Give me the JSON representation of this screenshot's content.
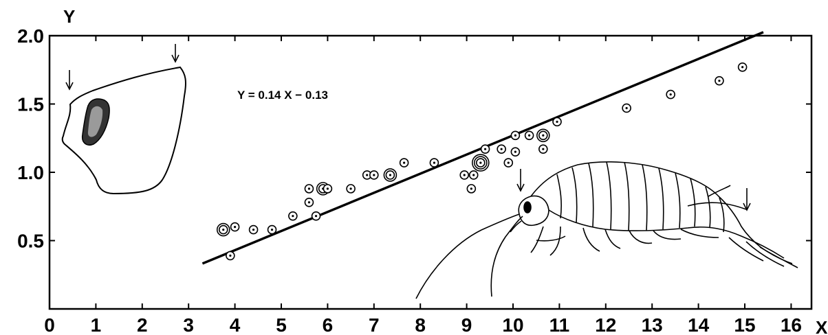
{
  "chart_data": {
    "type": "scatter",
    "title": "",
    "xlabel": "X",
    "ylabel": "Y",
    "xlim": [
      0,
      17
    ],
    "ylim": [
      0,
      2.0
    ],
    "x_ticks": [
      0,
      1,
      2,
      3,
      4,
      5,
      6,
      7,
      8,
      9,
      10,
      11,
      12,
      13,
      14,
      15,
      16
    ],
    "x_tick_labels": [
      "0",
      "1",
      "2",
      "3",
      "4",
      "5",
      "6",
      "7",
      "8",
      "9",
      "10",
      "11",
      "12",
      "13",
      "14",
      "15",
      "16"
    ],
    "y_ticks": [
      0.5,
      1.0,
      1.5,
      2.0
    ],
    "y_tick_labels": [
      "0.5",
      "1.0",
      "1.5",
      "2.0"
    ],
    "grid": false,
    "legend": "none",
    "regression": {
      "label": "Y = 0.14 X − 0.13",
      "slope": 0.14,
      "intercept": -0.13,
      "x_range": [
        3.3,
        15.4
      ]
    },
    "points": [
      {
        "x": 3.75,
        "y": 0.58,
        "n": 2
      },
      {
        "x": 4.0,
        "y": 0.6,
        "n": 1
      },
      {
        "x": 3.9,
        "y": 0.39,
        "n": 1
      },
      {
        "x": 4.4,
        "y": 0.58,
        "n": 1
      },
      {
        "x": 4.8,
        "y": 0.58,
        "n": 1
      },
      {
        "x": 5.25,
        "y": 0.68,
        "n": 1
      },
      {
        "x": 5.6,
        "y": 0.78,
        "n": 1
      },
      {
        "x": 5.6,
        "y": 0.88,
        "n": 1
      },
      {
        "x": 5.75,
        "y": 0.68,
        "n": 1
      },
      {
        "x": 5.9,
        "y": 0.88,
        "n": 2
      },
      {
        "x": 6.0,
        "y": 0.88,
        "n": 1
      },
      {
        "x": 6.5,
        "y": 0.88,
        "n": 1
      },
      {
        "x": 6.85,
        "y": 0.98,
        "n": 1
      },
      {
        "x": 7.0,
        "y": 0.98,
        "n": 1
      },
      {
        "x": 7.35,
        "y": 0.98,
        "n": 2
      },
      {
        "x": 7.65,
        "y": 1.07,
        "n": 1
      },
      {
        "x": 8.3,
        "y": 1.07,
        "n": 1
      },
      {
        "x": 8.95,
        "y": 0.98,
        "n": 1
      },
      {
        "x": 9.1,
        "y": 0.88,
        "n": 1
      },
      {
        "x": 9.15,
        "y": 0.98,
        "n": 1
      },
      {
        "x": 9.3,
        "y": 1.07,
        "n": 3
      },
      {
        "x": 9.4,
        "y": 1.17,
        "n": 1
      },
      {
        "x": 9.75,
        "y": 1.17,
        "n": 1
      },
      {
        "x": 9.9,
        "y": 1.07,
        "n": 1
      },
      {
        "x": 10.05,
        "y": 1.27,
        "n": 1
      },
      {
        "x": 10.05,
        "y": 1.15,
        "n": 1
      },
      {
        "x": 10.35,
        "y": 1.27,
        "n": 1
      },
      {
        "x": 10.65,
        "y": 1.27,
        "n": 2
      },
      {
        "x": 10.65,
        "y": 1.17,
        "n": 1
      },
      {
        "x": 10.95,
        "y": 1.37,
        "n": 1
      },
      {
        "x": 12.45,
        "y": 1.47,
        "n": 1
      },
      {
        "x": 13.4,
        "y": 1.57,
        "n": 1
      },
      {
        "x": 14.45,
        "y": 1.67,
        "n": 1
      },
      {
        "x": 14.95,
        "y": 1.77,
        "n": 1
      }
    ]
  }
}
